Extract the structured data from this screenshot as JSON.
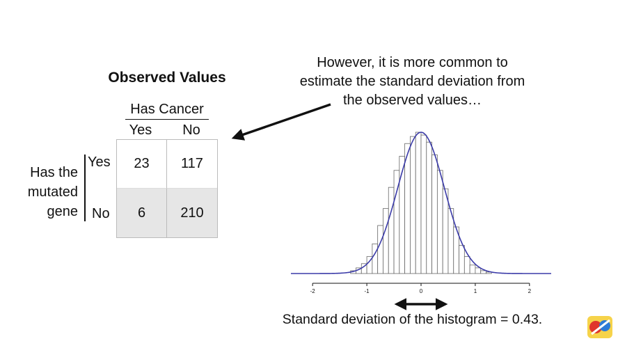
{
  "table": {
    "title": "Observed Values",
    "column_group": "Has Cancer",
    "columns": [
      "Yes",
      "No"
    ],
    "row_group_lines": [
      "Has the",
      "mutated",
      "gene"
    ],
    "rows": [
      {
        "label": "Yes",
        "values": [
          "23",
          "117"
        ]
      },
      {
        "label": "No",
        "values": [
          "6",
          "210"
        ]
      }
    ],
    "shaded_row_color": "#e6e6e6"
  },
  "annotation": {
    "lines": [
      "However, it is more common to",
      "estimate the standard deviation from",
      "the observed values…"
    ]
  },
  "caption": "Standard deviation of the histogram = 0.43.",
  "chart_data": {
    "type": "bar",
    "xlim": [
      -2.4,
      2.4
    ],
    "ylim": [
      0,
      1
    ],
    "xticks": [
      -2,
      -1,
      0,
      1,
      2
    ],
    "tick_labels": [
      "-2",
      "-1",
      "0",
      "1",
      "2"
    ],
    "bin_width": 0.1,
    "bin_centers": [
      -1.25,
      -1.15,
      -1.05,
      -0.95,
      -0.85,
      -0.75,
      -0.65,
      -0.55,
      -0.45,
      -0.35,
      -0.25,
      -0.15,
      -0.05,
      0.05,
      0.15,
      0.25,
      0.35,
      0.45,
      0.55,
      0.65,
      0.75,
      0.85,
      0.95,
      1.05,
      1.15,
      1.25
    ],
    "values": [
      0.02,
      0.04,
      0.07,
      0.12,
      0.21,
      0.34,
      0.46,
      0.61,
      0.73,
      0.83,
      0.92,
      0.97,
      1.0,
      0.98,
      0.93,
      0.84,
      0.73,
      0.6,
      0.46,
      0.33,
      0.2,
      0.12,
      0.06,
      0.04,
      0.02,
      0.01
    ],
    "curve": {
      "mean": 0,
      "sd": 0.43,
      "color": "#3a3aa8"
    },
    "bar_edge_color": "#666666",
    "axis_color": "#111111"
  },
  "sd_arrow": {
    "from": -0.5,
    "to": 0.5
  }
}
